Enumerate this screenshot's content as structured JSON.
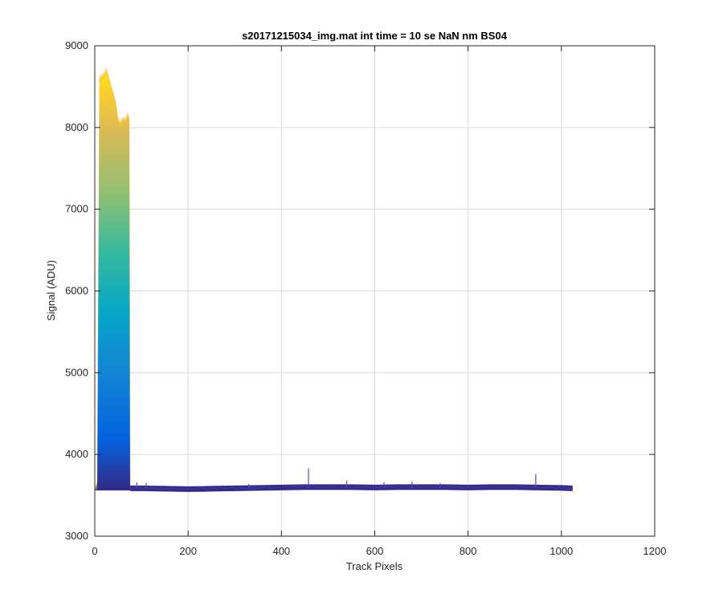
{
  "chart_data": {
    "type": "area",
    "title": "s20171215034_img.mat int time = 10 se  NaN nm BS04",
    "xlabel": "Track Pixels",
    "ylabel": "Signal (ADU)",
    "xlim": [
      0,
      1200
    ],
    "ylim": [
      3000,
      9000
    ],
    "xticks": [
      0,
      200,
      400,
      600,
      800,
      1000,
      1200
    ],
    "yticks": [
      3000,
      4000,
      5000,
      6000,
      7000,
      8000,
      9000
    ],
    "xtick_labels": [
      "0",
      "200",
      "400",
      "600",
      "800",
      "1000",
      "1200"
    ],
    "ytick_labels": [
      "3000",
      "4000",
      "5000",
      "6000",
      "7000",
      "8000",
      "9000"
    ],
    "grid": true,
    "colormap": "parula",
    "colors": {
      "low": "#352a87",
      "high": "#f9fb0e",
      "grid": "#d9d9d9",
      "axis": "#262626"
    },
    "baseline": 3560,
    "bright_region": {
      "x": [
        0,
        5,
        10,
        15,
        20,
        25,
        30,
        35,
        40,
        45,
        50,
        55,
        60,
        65,
        70,
        74,
        76
      ],
      "y": [
        3560,
        3650,
        8600,
        8620,
        8650,
        8700,
        8600,
        8500,
        8400,
        8300,
        8100,
        8050,
        8100,
        8080,
        8150,
        8100,
        3620
      ]
    },
    "baseline_series": {
      "x": [
        76,
        100,
        150,
        200,
        250,
        300,
        350,
        400,
        450,
        500,
        550,
        600,
        650,
        700,
        750,
        800,
        850,
        900,
        950,
        1000,
        1024
      ],
      "y": [
        3590,
        3590,
        3585,
        3580,
        3585,
        3590,
        3595,
        3600,
        3605,
        3605,
        3605,
        3600,
        3605,
        3605,
        3605,
        3600,
        3605,
        3605,
        3600,
        3595,
        3590
      ]
    },
    "spikes": [
      {
        "x": 90,
        "y": 3660
      },
      {
        "x": 110,
        "y": 3650
      },
      {
        "x": 330,
        "y": 3640
      },
      {
        "x": 458,
        "y": 3830
      },
      {
        "x": 540,
        "y": 3680
      },
      {
        "x": 620,
        "y": 3660
      },
      {
        "x": 680,
        "y": 3670
      },
      {
        "x": 740,
        "y": 3650
      },
      {
        "x": 945,
        "y": 3760
      }
    ]
  }
}
